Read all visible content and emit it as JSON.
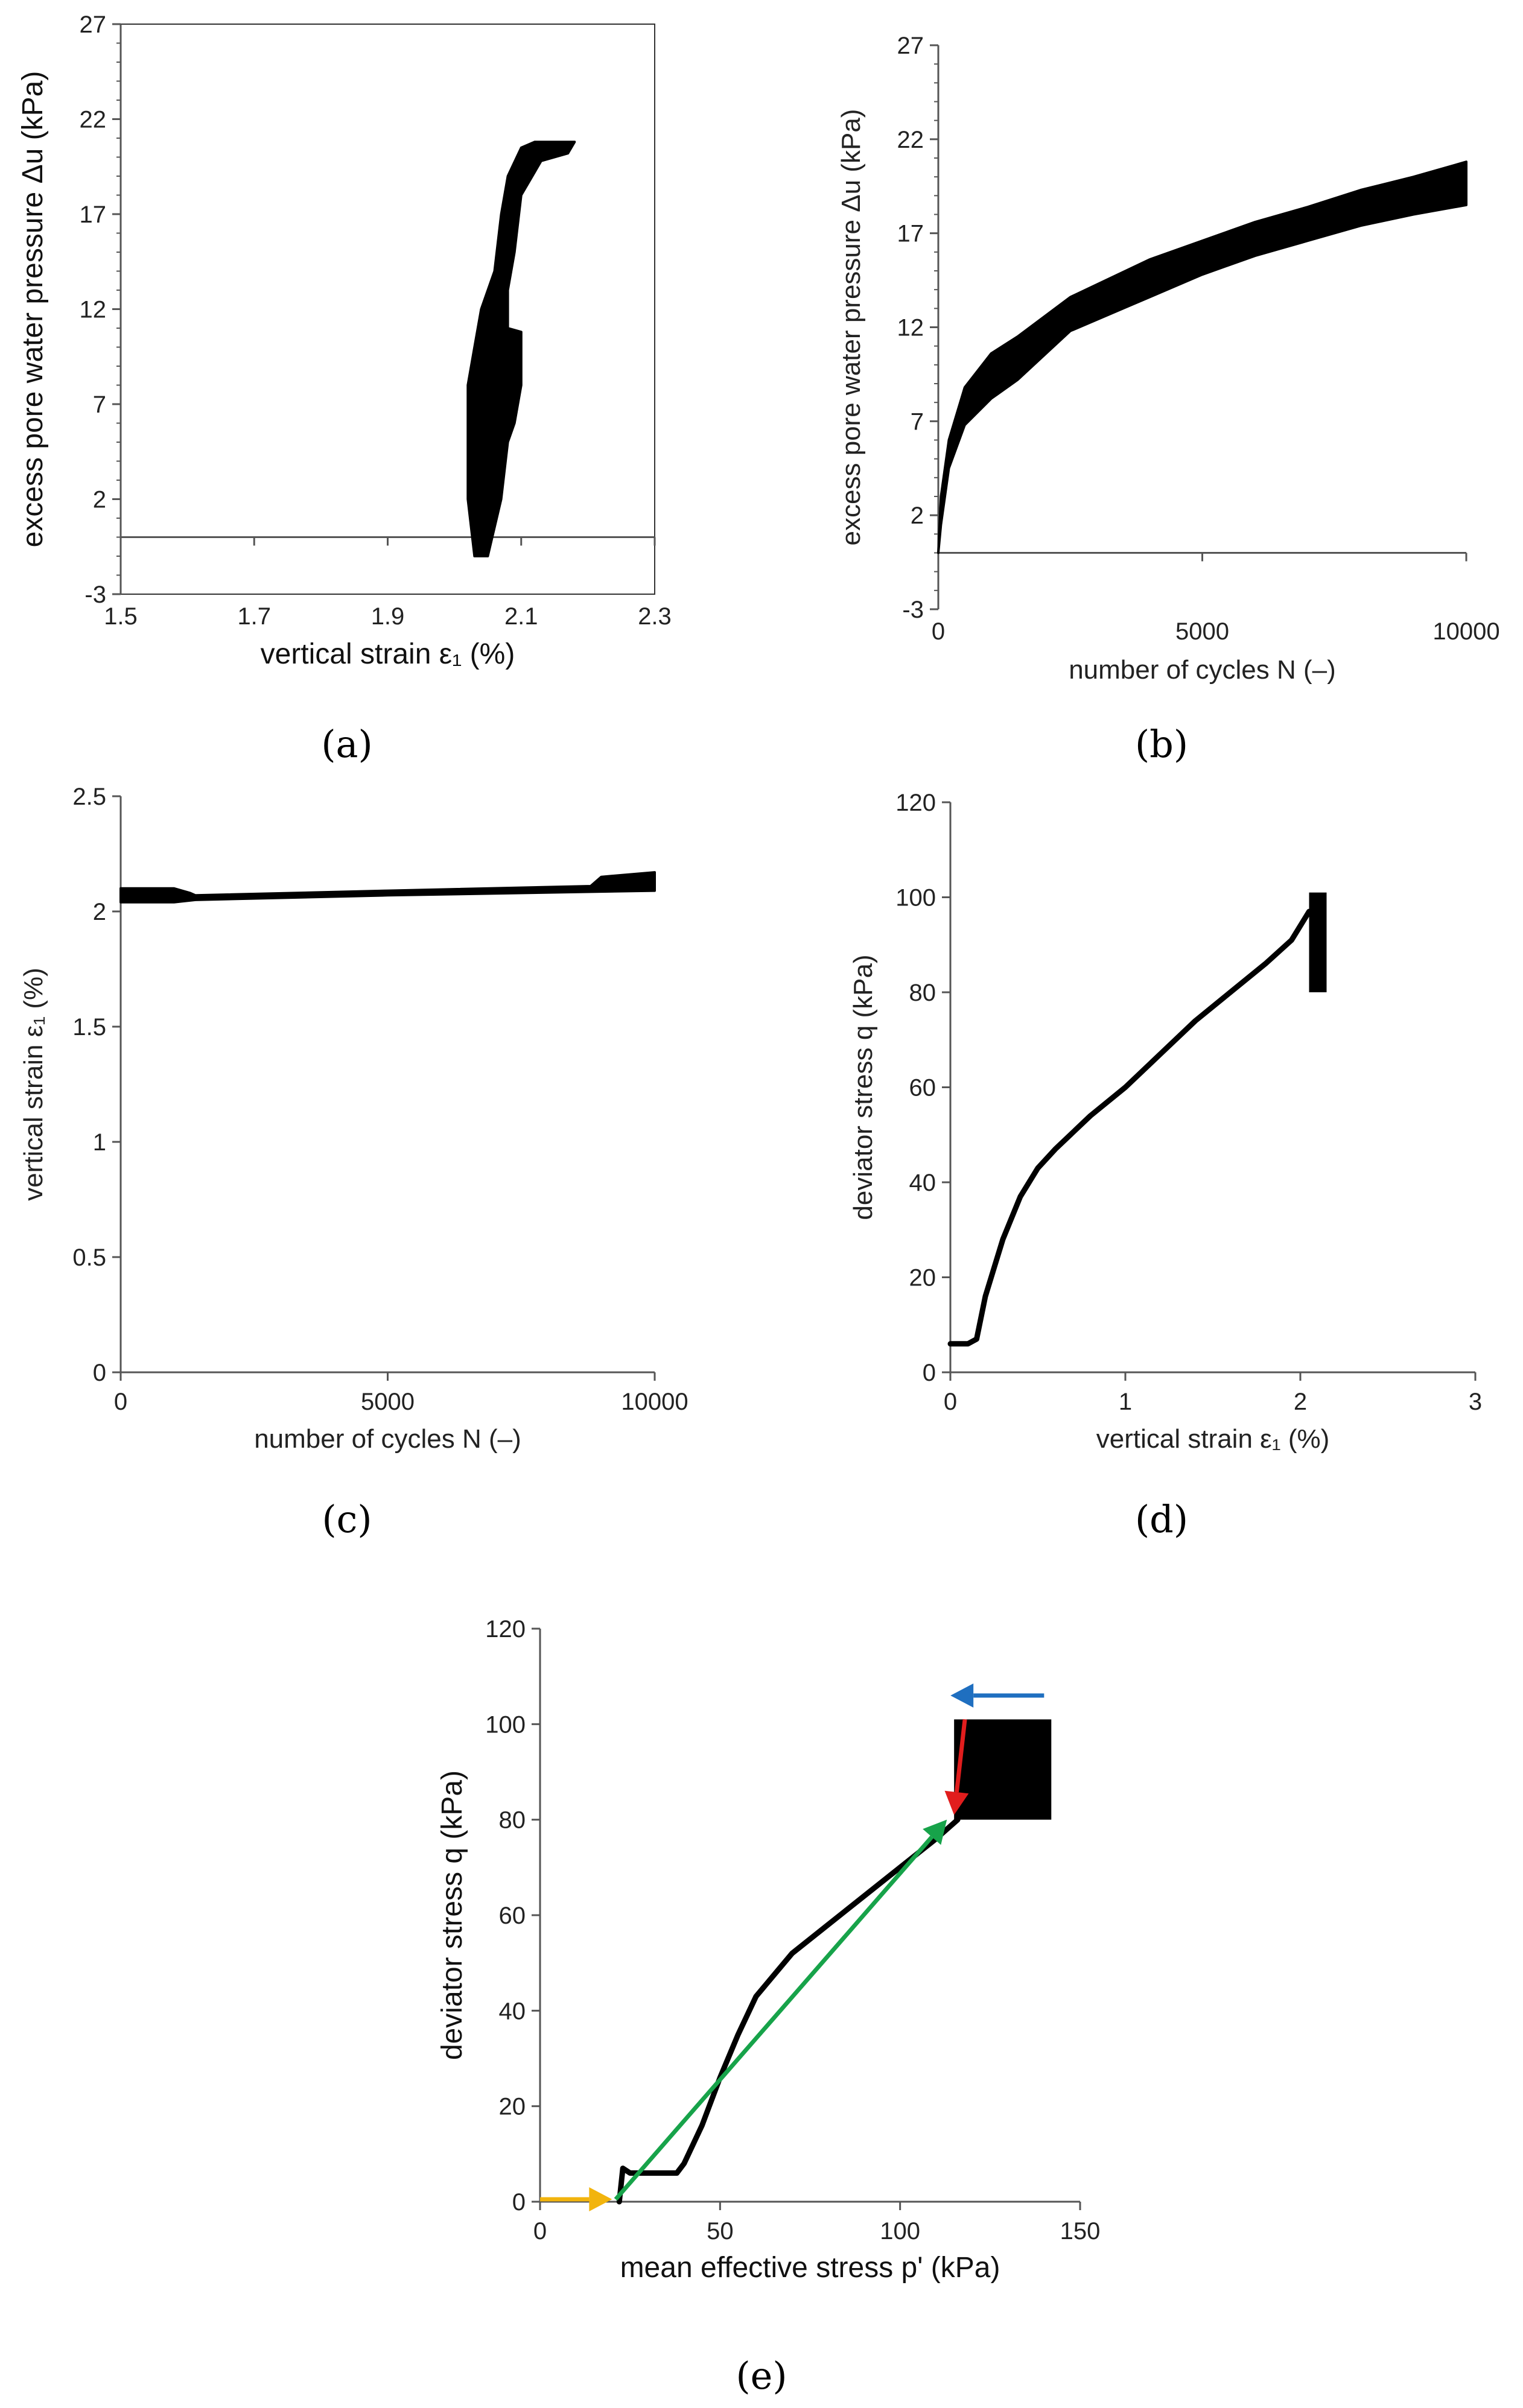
{
  "panel_labels": [
    "(a)",
    "(b)",
    "(c)",
    "(d)",
    "(e)"
  ],
  "colors": {
    "data": "#000000",
    "arrow_orange": "#f2b40d",
    "arrow_green": "#17a34a",
    "arrow_blue": "#1f6fc0",
    "arrow_red": "#e11d1d"
  },
  "chart_data": [
    {
      "id": "a",
      "type": "area",
      "title": "",
      "xlabel": "vertical strain ε₁ (%)",
      "ylabel": "excess pore water pressure Δu (kPa)",
      "xlim": [
        1.5,
        2.3
      ],
      "ylim": [
        -3,
        27
      ],
      "xticks": [
        "1.5",
        "1.7",
        "1.9",
        "2.1",
        "2.3"
      ],
      "yticks": [
        "-3",
        "2",
        "7",
        "12",
        "17",
        "22",
        "27"
      ],
      "x_axis_at_y": 0,
      "band": {
        "upper": [
          [
            2.03,
            -1
          ],
          [
            2.02,
            2
          ],
          [
            2.02,
            5
          ],
          [
            2.02,
            8
          ],
          [
            2.03,
            10
          ],
          [
            2.04,
            12
          ],
          [
            2.06,
            14
          ],
          [
            2.07,
            17
          ],
          [
            2.08,
            19
          ],
          [
            2.1,
            20.5
          ],
          [
            2.12,
            20.8
          ],
          [
            2.18,
            20.8
          ]
        ],
        "lower": [
          [
            2.05,
            -1
          ],
          [
            2.07,
            2
          ],
          [
            2.08,
            5
          ],
          [
            2.09,
            6
          ],
          [
            2.1,
            8
          ],
          [
            2.1,
            10.8
          ],
          [
            2.08,
            11
          ],
          [
            2.08,
            13
          ],
          [
            2.09,
            15
          ],
          [
            2.1,
            18
          ],
          [
            2.13,
            19.8
          ],
          [
            2.17,
            20.2
          ]
        ]
      }
    },
    {
      "id": "b",
      "type": "area",
      "title": "",
      "xlabel": "number of cycles N (–)",
      "ylabel": "excess pore water pressure Δu (kPa)",
      "xlim": [
        0,
        10000
      ],
      "ylim": [
        -3,
        27
      ],
      "xticks": [
        "0",
        "5000",
        "10000"
      ],
      "yticks": [
        "-3",
        "2",
        "7",
        "12",
        "17",
        "22",
        "27"
      ],
      "x_axis_at_y": 0,
      "band": {
        "upper": [
          [
            0,
            0
          ],
          [
            50,
            3
          ],
          [
            200,
            6
          ],
          [
            500,
            8.8
          ],
          [
            1000,
            10.6
          ],
          [
            1500,
            11.5
          ],
          [
            2500,
            13.6
          ],
          [
            4000,
            15.6
          ],
          [
            5000,
            16.6
          ],
          [
            6000,
            17.6
          ],
          [
            7000,
            18.4
          ],
          [
            8000,
            19.3
          ],
          [
            9000,
            20
          ],
          [
            10000,
            20.8
          ]
        ],
        "lower": [
          [
            0,
            0
          ],
          [
            50,
            1.5
          ],
          [
            200,
            4.5
          ],
          [
            500,
            6.8
          ],
          [
            1000,
            8.2
          ],
          [
            1500,
            9.2
          ],
          [
            2500,
            11.8
          ],
          [
            4000,
            13.6
          ],
          [
            5000,
            14.8
          ],
          [
            6000,
            15.8
          ],
          [
            7000,
            16.6
          ],
          [
            8000,
            17.4
          ],
          [
            9000,
            18
          ],
          [
            10000,
            18.5
          ]
        ]
      }
    },
    {
      "id": "c",
      "type": "line",
      "title": "",
      "xlabel": "number of cycles N (–)",
      "ylabel": "vertical strain ε₁ (%)",
      "xlim": [
        0,
        10000
      ],
      "ylim": [
        0,
        2.5
      ],
      "xticks": [
        "0",
        "5000",
        "10000"
      ],
      "yticks": [
        "0",
        "0.5",
        "1",
        "1.5",
        "2",
        "2.5"
      ],
      "band": {
        "upper": [
          [
            0,
            2.1
          ],
          [
            300,
            2.1
          ],
          [
            1000,
            2.1
          ],
          [
            1300,
            2.08
          ],
          [
            1400,
            2.07
          ],
          [
            5000,
            2.09
          ],
          [
            8800,
            2.11
          ],
          [
            9000,
            2.15
          ],
          [
            10000,
            2.17
          ]
        ],
        "lower": [
          [
            0,
            2.04
          ],
          [
            1000,
            2.04
          ],
          [
            1400,
            2.05
          ],
          [
            5000,
            2.07
          ],
          [
            10000,
            2.09
          ]
        ]
      }
    },
    {
      "id": "d",
      "type": "line",
      "title": "",
      "xlabel": "vertical strain ε₁ (%)",
      "ylabel": "deviator stress q (kPa)",
      "xlim": [
        0,
        3
      ],
      "ylim": [
        0,
        120
      ],
      "xticks": [
        "0",
        "1",
        "2",
        "3"
      ],
      "yticks": [
        "0",
        "20",
        "40",
        "60",
        "80",
        "100",
        "120"
      ],
      "x": [
        0.0,
        0.1,
        0.15,
        0.2,
        0.3,
        0.4,
        0.5,
        0.6,
        0.8,
        1.0,
        1.2,
        1.4,
        1.6,
        1.8,
        1.95,
        2.05
      ],
      "y": [
        6,
        6,
        7,
        16,
        28,
        37,
        43,
        47,
        54,
        60,
        67,
        74,
        80,
        86,
        91,
        97
      ],
      "loop_box": {
        "x": [
          2.05,
          2.15
        ],
        "y": [
          80,
          101
        ]
      }
    },
    {
      "id": "e",
      "type": "line",
      "title": "",
      "xlabel": "mean effective stress p' (kPa)",
      "ylabel": "deviator stress q (kPa)",
      "xlim": [
        0,
        150
      ],
      "ylim": [
        0,
        120
      ],
      "xticks": [
        "0",
        "50",
        "100",
        "150"
      ],
      "yticks": [
        "0",
        "20",
        "40",
        "60",
        "80",
        "100",
        "120"
      ],
      "x": [
        22,
        23,
        25,
        30,
        38,
        40,
        45,
        50,
        55,
        60,
        70,
        80,
        90,
        100,
        110,
        116
      ],
      "y": [
        0,
        7,
        6,
        6,
        6,
        8,
        16,
        26,
        35,
        43,
        52,
        58,
        64,
        70,
        76,
        80
      ],
      "loop_box": {
        "x": [
          115,
          142
        ],
        "y": [
          80,
          101
        ]
      },
      "arrows": [
        {
          "color_key": "arrow_orange",
          "from": [
            0,
            0.5
          ],
          "to": [
            20,
            0.5
          ]
        },
        {
          "color_key": "arrow_green",
          "from": [
            21,
            0.5
          ],
          "to": [
            113,
            80
          ]
        },
        {
          "color_key": "arrow_red",
          "from": [
            118,
            101
          ],
          "to": [
            115,
            81
          ]
        },
        {
          "color_key": "arrow_blue",
          "from": [
            140,
            106
          ],
          "to": [
            114,
            106
          ]
        }
      ]
    }
  ]
}
